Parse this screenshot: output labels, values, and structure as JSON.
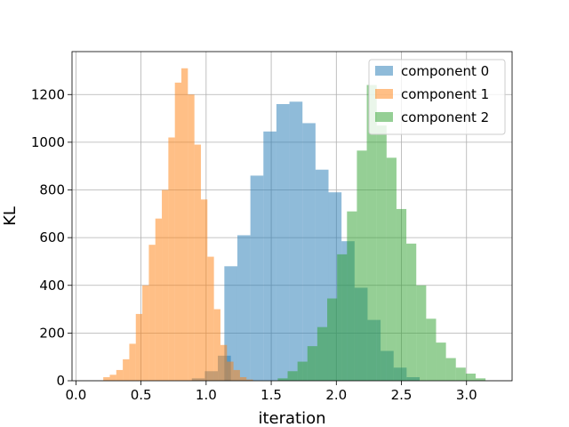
{
  "chart_data": {
    "type": "histogram",
    "title": "",
    "xlabel": "iteration",
    "ylabel": "KL",
    "xlim": [
      0.0,
      3.35
    ],
    "ylim": [
      0,
      1380
    ],
    "grid": true,
    "legend_position": "top-right",
    "xticks": [
      "0.0",
      "0.5",
      "1.0",
      "1.5",
      "2.0",
      "2.5",
      "3.0"
    ],
    "yticks": [
      "0",
      "200",
      "400",
      "600",
      "800",
      "1000",
      "1200"
    ],
    "series": [
      {
        "name": "component 0",
        "color": "#1f77b4",
        "alpha": 0.5,
        "bin_width": 0.1,
        "bins": [
          {
            "x0": 0.89,
            "count": 10
          },
          {
            "x0": 0.99,
            "count": 40
          },
          {
            "x0": 1.09,
            "count": 105
          },
          {
            "x0": 1.14,
            "count": 480
          },
          {
            "x0": 1.24,
            "count": 610
          },
          {
            "x0": 1.34,
            "count": 860
          },
          {
            "x0": 1.44,
            "count": 1045
          },
          {
            "x0": 1.54,
            "count": 1160
          },
          {
            "x0": 1.64,
            "count": 1170
          },
          {
            "x0": 1.74,
            "count": 1080
          },
          {
            "x0": 1.84,
            "count": 885
          },
          {
            "x0": 1.94,
            "count": 790
          },
          {
            "x0": 2.04,
            "count": 585
          },
          {
            "x0": 2.14,
            "count": 390
          },
          {
            "x0": 2.24,
            "count": 255
          },
          {
            "x0": 2.34,
            "count": 125
          },
          {
            "x0": 2.44,
            "count": 55
          },
          {
            "x0": 2.54,
            "count": 15
          }
        ]
      },
      {
        "name": "component 1",
        "color": "#ff7f0e",
        "alpha": 0.5,
        "bin_width": 0.05,
        "bins": [
          {
            "x0": 0.21,
            "count": 15
          },
          {
            "x0": 0.26,
            "count": 25
          },
          {
            "x0": 0.31,
            "count": 45
          },
          {
            "x0": 0.36,
            "count": 90
          },
          {
            "x0": 0.41,
            "count": 155
          },
          {
            "x0": 0.46,
            "count": 280
          },
          {
            "x0": 0.51,
            "count": 400
          },
          {
            "x0": 0.56,
            "count": 570
          },
          {
            "x0": 0.61,
            "count": 680
          },
          {
            "x0": 0.66,
            "count": 800
          },
          {
            "x0": 0.71,
            "count": 1020
          },
          {
            "x0": 0.76,
            "count": 1250
          },
          {
            "x0": 0.81,
            "count": 1310
          },
          {
            "x0": 0.86,
            "count": 1200
          },
          {
            "x0": 0.91,
            "count": 990
          },
          {
            "x0": 0.96,
            "count": 760
          },
          {
            "x0": 1.01,
            "count": 520
          },
          {
            "x0": 1.06,
            "count": 300
          },
          {
            "x0": 1.11,
            "count": 150
          },
          {
            "x0": 1.16,
            "count": 80
          },
          {
            "x0": 1.21,
            "count": 45
          },
          {
            "x0": 1.26,
            "count": 15
          },
          {
            "x0": 1.31,
            "count": 5
          }
        ]
      },
      {
        "name": "component 2",
        "color": "#2ca02c",
        "alpha": 0.5,
        "bin_width": 0.076,
        "bins": [
          {
            "x0": 1.55,
            "count": 10
          },
          {
            "x0": 1.626,
            "count": 40
          },
          {
            "x0": 1.702,
            "count": 80
          },
          {
            "x0": 1.778,
            "count": 145
          },
          {
            "x0": 1.854,
            "count": 225
          },
          {
            "x0": 1.93,
            "count": 345
          },
          {
            "x0": 2.006,
            "count": 530
          },
          {
            "x0": 2.082,
            "count": 710
          },
          {
            "x0": 2.158,
            "count": 965
          },
          {
            "x0": 2.234,
            "count": 1240
          },
          {
            "x0": 2.31,
            "count": 1070
          },
          {
            "x0": 2.386,
            "count": 935
          },
          {
            "x0": 2.462,
            "count": 720
          },
          {
            "x0": 2.538,
            "count": 575
          },
          {
            "x0": 2.614,
            "count": 400
          },
          {
            "x0": 2.69,
            "count": 260
          },
          {
            "x0": 2.766,
            "count": 160
          },
          {
            "x0": 2.842,
            "count": 95
          },
          {
            "x0": 2.918,
            "count": 55
          },
          {
            "x0": 2.994,
            "count": 30
          },
          {
            "x0": 3.07,
            "count": 10
          }
        ]
      }
    ]
  }
}
